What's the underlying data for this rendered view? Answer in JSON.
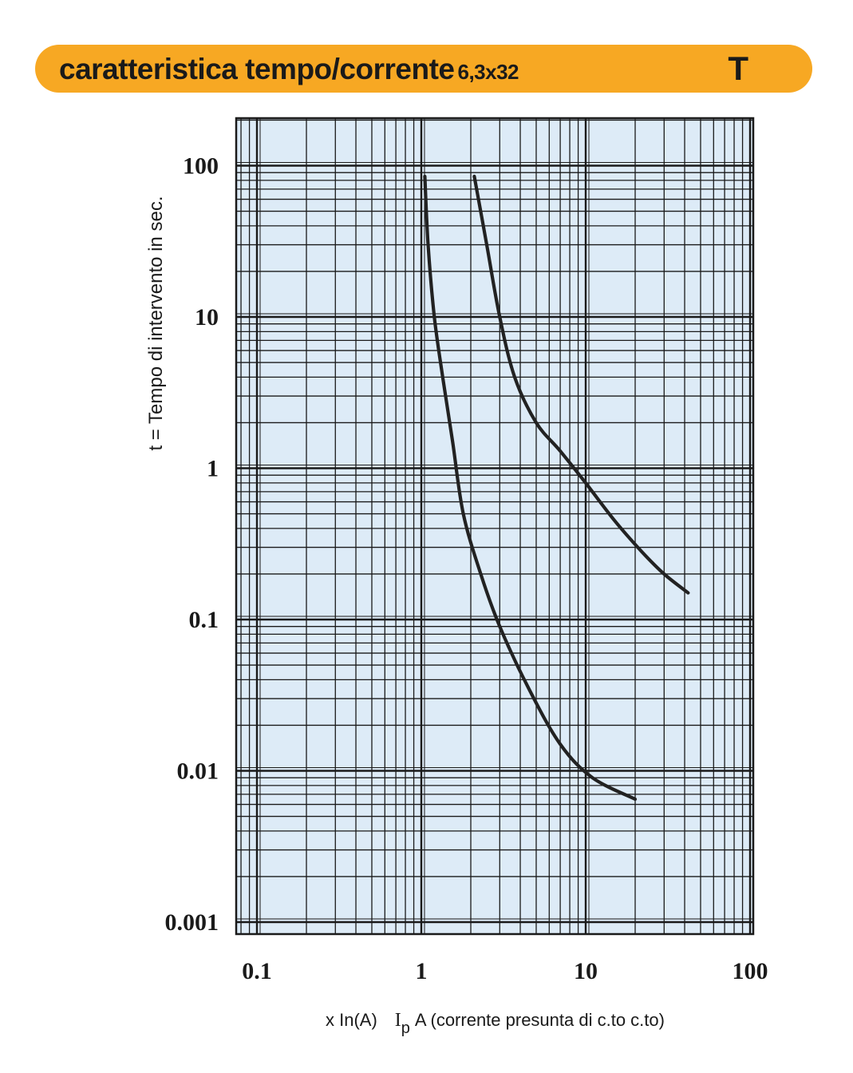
{
  "header": {
    "title": "caratteristica tempo/corrente",
    "subtitle": "6,3x32",
    "class_letter": "T"
  },
  "colors": {
    "header_bg": "#f7a823",
    "plot_bg": "#ddebf7",
    "grid": "#1a1a1a",
    "curve": "#222222"
  },
  "chart_data": {
    "type": "line",
    "title": "caratteristica tempo/corrente 6,3x32",
    "xscale": "log",
    "yscale": "log",
    "xlim": [
      0.085,
      100
    ],
    "ylim": [
      0.001,
      250
    ],
    "xticks": [
      {
        "value": 0.1,
        "label": "0.1"
      },
      {
        "value": 1,
        "label": "1"
      },
      {
        "value": 10,
        "label": "10"
      },
      {
        "value": 100,
        "label": "100"
      }
    ],
    "yticks": [
      {
        "value": 0.001,
        "label": "0.001"
      },
      {
        "value": 0.01,
        "label": "0.01"
      },
      {
        "value": 0.1,
        "label": "0.1"
      },
      {
        "value": 1,
        "label": "1"
      },
      {
        "value": 10,
        "label": "10"
      },
      {
        "value": 100,
        "label": "100"
      }
    ],
    "ylabel": "t = Tempo di intervento in sec.",
    "xlabel": {
      "prefix": "x In(A)",
      "symbol": "I",
      "subscript": "p",
      "suffix": "A (corrente presunta di c.to c.to)"
    },
    "grid": true,
    "series": [
      {
        "points": [
          [
            1.05,
            85
          ],
          [
            1.1,
            30
          ],
          [
            1.2,
            10
          ],
          [
            1.35,
            4
          ],
          [
            1.55,
            1.5
          ],
          [
            1.8,
            0.5
          ],
          [
            2.3,
            0.2
          ],
          [
            3,
            0.09
          ],
          [
            4.5,
            0.035
          ],
          [
            7,
            0.015
          ],
          [
            11,
            0.009
          ],
          [
            20,
            0.0065
          ]
        ]
      },
      {
        "points": [
          [
            2.1,
            85
          ],
          [
            2.5,
            30
          ],
          [
            3,
            10
          ],
          [
            3.7,
            4
          ],
          [
            5,
            2
          ],
          [
            7,
            1.3
          ],
          [
            10,
            0.8
          ],
          [
            15,
            0.45
          ],
          [
            22,
            0.28
          ],
          [
            30,
            0.2
          ],
          [
            42,
            0.15
          ]
        ]
      }
    ]
  }
}
